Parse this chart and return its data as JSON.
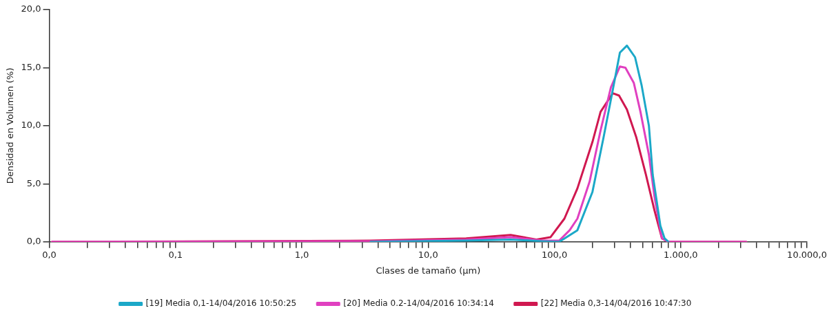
{
  "chart_data": {
    "type": "line",
    "xlabel": "Clases de tamaño (µm)",
    "ylabel": "Densidad en Volumen (%)",
    "log": "x",
    "grid": false,
    "legend": "bottom",
    "marker": "none",
    "line_style": "solid",
    "xlim": [
      0.01,
      10000
    ],
    "ylim": [
      0,
      20
    ],
    "xticks": [
      {
        "value": 0.01,
        "label": "0,0"
      },
      {
        "value": 0.02,
        "label": null
      },
      {
        "value": 0.03,
        "label": null
      },
      {
        "value": 0.04,
        "label": null
      },
      {
        "value": 0.05,
        "label": null
      },
      {
        "value": 0.06,
        "label": null
      },
      {
        "value": 0.07,
        "label": null
      },
      {
        "value": 0.08,
        "label": null
      },
      {
        "value": 0.09,
        "label": null
      },
      {
        "value": 0.1,
        "label": "0,1"
      },
      {
        "value": 0.2,
        "label": null
      },
      {
        "value": 0.3,
        "label": null
      },
      {
        "value": 0.4,
        "label": null
      },
      {
        "value": 0.5,
        "label": null
      },
      {
        "value": 0.6,
        "label": null
      },
      {
        "value": 0.7,
        "label": null
      },
      {
        "value": 0.8,
        "label": null
      },
      {
        "value": 0.9,
        "label": null
      },
      {
        "value": 1,
        "label": "1,0"
      },
      {
        "value": 2,
        "label": null
      },
      {
        "value": 3,
        "label": null
      },
      {
        "value": 4,
        "label": null
      },
      {
        "value": 5,
        "label": null
      },
      {
        "value": 6,
        "label": null
      },
      {
        "value": 7,
        "label": null
      },
      {
        "value": 8,
        "label": null
      },
      {
        "value": 9,
        "label": null
      },
      {
        "value": 10,
        "label": "10,0"
      },
      {
        "value": 20,
        "label": null
      },
      {
        "value": 30,
        "label": null
      },
      {
        "value": 40,
        "label": null
      },
      {
        "value": 50,
        "label": null
      },
      {
        "value": 60,
        "label": null
      },
      {
        "value": 70,
        "label": null
      },
      {
        "value": 80,
        "label": null
      },
      {
        "value": 90,
        "label": null
      },
      {
        "value": 100,
        "label": "100,0"
      },
      {
        "value": 200,
        "label": null
      },
      {
        "value": 300,
        "label": null
      },
      {
        "value": 400,
        "label": null
      },
      {
        "value": 500,
        "label": null
      },
      {
        "value": 600,
        "label": null
      },
      {
        "value": 700,
        "label": null
      },
      {
        "value": 800,
        "label": null
      },
      {
        "value": 900,
        "label": null
      },
      {
        "value": 1000,
        "label": "1.000,0"
      },
      {
        "value": 2000,
        "label": null
      },
      {
        "value": 3000,
        "label": null
      },
      {
        "value": 4000,
        "label": null
      },
      {
        "value": 5000,
        "label": null
      },
      {
        "value": 6000,
        "label": null
      },
      {
        "value": 7000,
        "label": null
      },
      {
        "value": 8000,
        "label": null
      },
      {
        "value": 9000,
        "label": null
      },
      {
        "value": 10000,
        "label": "10.000,0"
      }
    ],
    "yticks": [
      {
        "value": 0,
        "label": "0,0"
      },
      {
        "value": 5,
        "label": "5,0"
      },
      {
        "value": 10,
        "label": "10,0"
      },
      {
        "value": 15,
        "label": "15,0"
      },
      {
        "value": 20,
        "label": "20,0"
      }
    ],
    "series": [
      {
        "name": "[19] Media 0,1-14/04/2016 10:50:25",
        "color": "#1ba8c8",
        "x": [
          3.5,
          20,
          45,
          80,
          109,
          152,
          200,
          245,
          290,
          330,
          375,
          435,
          490,
          560,
          600,
          690,
          745,
          800
        ],
        "values": [
          0,
          0.1,
          0.2,
          0.05,
          0,
          1.0,
          4.3,
          9.0,
          13.1,
          16.3,
          16.9,
          15.9,
          13.5,
          10.0,
          5.8,
          1.4,
          0.3,
          0
        ]
      },
      {
        "name": "[20] Media 0.2-14/04/2016 10:34:14",
        "color": "#e040c0",
        "x": [
          0.0105,
          3.5,
          20,
          45,
          80,
          109,
          132,
          152,
          190,
          232,
          280,
          330,
          365,
          425,
          480,
          560,
          620,
          710,
          800,
          3300
        ],
        "values": [
          0,
          0.05,
          0.2,
          0.4,
          0.1,
          0.1,
          1.0,
          2.0,
          5.2,
          9.6,
          13.3,
          15.1,
          15.0,
          13.7,
          11.2,
          7.5,
          3.9,
          0.3,
          0,
          0
        ]
      },
      {
        "name": "[22] Media 0,3-14/04/2016 10:47:30",
        "color": "#d01850",
        "x": [
          0.0105,
          3.5,
          20,
          45,
          72,
          93,
          120,
          152,
          200,
          232,
          290,
          325,
          375,
          445,
          530,
          620,
          710,
          800,
          3300
        ],
        "values": [
          0,
          0.1,
          0.3,
          0.6,
          0.2,
          0.4,
          2.0,
          4.6,
          8.6,
          11.2,
          12.8,
          12.6,
          11.4,
          9.0,
          5.8,
          2.7,
          0.3,
          0,
          0
        ]
      }
    ]
  }
}
